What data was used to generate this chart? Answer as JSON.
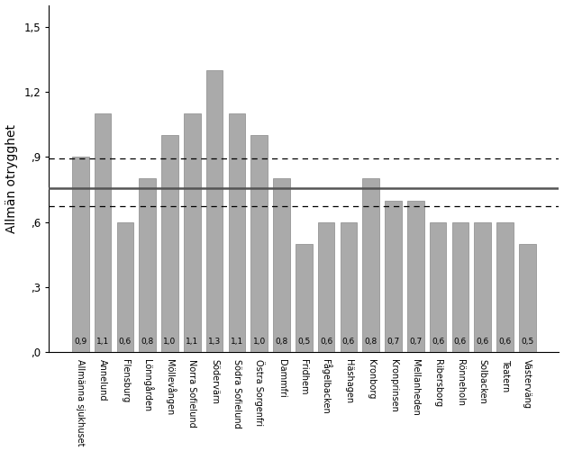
{
  "categories": [
    "Allmänna sjukhuset",
    "Annelund",
    "Flensburg",
    "Lönngården",
    "Möllevången",
    "Norra Sofielund",
    "Södervärn",
    "Södra Sofielund",
    "Östra Sorgenfri",
    "Dammfri",
    "Fridhem",
    "Fågelbacken",
    "Häshagen",
    "Kronborg",
    "Kronprinsen",
    "Mellanheden",
    "Ribersborg",
    "Rönneholn",
    "Solbacken",
    "Teatern",
    "Västerväng"
  ],
  "values": [
    0.9,
    1.1,
    0.6,
    0.8,
    1.0,
    1.1,
    1.3,
    1.1,
    1.0,
    0.8,
    0.5,
    0.6,
    0.6,
    0.8,
    0.7,
    0.7,
    0.6,
    0.6,
    0.6,
    0.6,
    0.5
  ],
  "bar_color": "#aaaaaa",
  "bar_edge_color": "#888888",
  "ylabel": "Allmän otrygghet",
  "ylim": [
    0.0,
    1.6
  ],
  "yticks": [
    0.0,
    0.3,
    0.6,
    0.9,
    1.2,
    1.5
  ],
  "ytick_labels": [
    ",0",
    ",3",
    ",6",
    ",9",
    "1,2",
    "1,5"
  ],
  "mean_line": 0.755,
  "upper_dashed": 0.895,
  "lower_dashed": 0.675,
  "background_color": "#ffffff",
  "label_fontsize": 6.5,
  "tick_fontsize": 8.5,
  "ylabel_fontsize": 10
}
